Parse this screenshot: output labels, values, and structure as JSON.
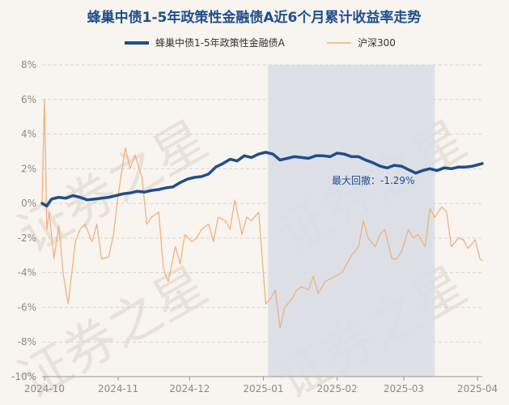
{
  "chart_data": {
    "type": "line",
    "title": "蜂巢中债1-5年政策性金融债A近6个月累计收益率走势",
    "watermark": "证券之星",
    "colors": {
      "fund": "#1f4e8c",
      "index": "#f2b27a",
      "shade": "#d9dee6",
      "grid": "#d8d4cf",
      "axis": "#999999",
      "background": "#f8f4f0"
    },
    "grid": true,
    "legend_position": "top",
    "ylim": [
      -10,
      8
    ],
    "yticks": [
      8,
      6,
      4,
      2,
      0,
      -2,
      -4,
      -6,
      -8,
      -10
    ],
    "ytick_labels": [
      "8%",
      "6%",
      "4%",
      "2%",
      "0%",
      "-2%",
      "-4%",
      "-6%",
      "-8%",
      "-10%"
    ],
    "x_range": [
      "2024-09-30",
      "2025-04-03"
    ],
    "xticks": [
      {
        "date": "2024-10-01",
        "label": "2024-10"
      },
      {
        "date": "2024-11-01",
        "label": "2024-11"
      },
      {
        "date": "2024-12-01",
        "label": "2024-12"
      },
      {
        "date": "2025-01-01",
        "label": "2025-01"
      },
      {
        "date": "2025-02-01",
        "label": "2025-02"
      },
      {
        "date": "2025-03-01",
        "label": "2025-03"
      },
      {
        "date": "2025-04-01",
        "label": "2025-04"
      }
    ],
    "drawdown": {
      "label": "最大回撤：-1.29%",
      "start": "2025-01-03",
      "end": "2025-03-14"
    },
    "series": [
      {
        "name": "蜂巢中债1-5年政策性金融债A",
        "x": [
          "2024-09-30",
          "2024-10-02",
          "2024-10-04",
          "2024-10-07",
          "2024-10-10",
          "2024-10-13",
          "2024-10-16",
          "2024-10-19",
          "2024-10-22",
          "2024-10-25",
          "2024-10-28",
          "2024-10-31",
          "2024-11-03",
          "2024-11-06",
          "2024-11-09",
          "2024-11-12",
          "2024-11-15",
          "2024-11-18",
          "2024-11-21",
          "2024-11-24",
          "2024-11-27",
          "2024-11-30",
          "2024-12-03",
          "2024-12-06",
          "2024-12-09",
          "2024-12-12",
          "2024-12-15",
          "2024-12-18",
          "2024-12-21",
          "2024-12-24",
          "2024-12-27",
          "2024-12-30",
          "2025-01-02",
          "2025-01-05",
          "2025-01-08",
          "2025-01-11",
          "2025-01-14",
          "2025-01-17",
          "2025-01-20",
          "2025-01-23",
          "2025-01-26",
          "2025-01-29",
          "2025-02-01",
          "2025-02-04",
          "2025-02-07",
          "2025-02-10",
          "2025-02-13",
          "2025-02-16",
          "2025-02-19",
          "2025-02-22",
          "2025-02-25",
          "2025-02-28",
          "2025-03-03",
          "2025-03-06",
          "2025-03-09",
          "2025-03-12",
          "2025-03-15",
          "2025-03-18",
          "2025-03-21",
          "2025-03-24",
          "2025-03-27",
          "2025-03-30",
          "2025-04-03"
        ],
        "y": [
          0.0,
          -0.15,
          0.25,
          0.35,
          0.3,
          0.45,
          0.35,
          0.2,
          0.25,
          0.3,
          0.35,
          0.45,
          0.55,
          0.6,
          0.7,
          0.65,
          0.75,
          0.8,
          0.9,
          0.95,
          1.2,
          1.4,
          1.5,
          1.55,
          1.7,
          2.1,
          2.3,
          2.55,
          2.45,
          2.75,
          2.65,
          2.85,
          2.95,
          2.85,
          2.5,
          2.6,
          2.7,
          2.65,
          2.6,
          2.75,
          2.75,
          2.7,
          2.9,
          2.85,
          2.7,
          2.7,
          2.5,
          2.35,
          2.15,
          2.05,
          2.2,
          2.15,
          1.95,
          1.75,
          1.9,
          2.0,
          1.9,
          2.05,
          2.0,
          2.1,
          2.1,
          2.15,
          2.3
        ]
      },
      {
        "name": "沪深300",
        "x": [
          "2024-09-30",
          "2024-10-01",
          "2024-10-02",
          "2024-10-03",
          "2024-10-05",
          "2024-10-07",
          "2024-10-09",
          "2024-10-11",
          "2024-10-14",
          "2024-10-16",
          "2024-10-18",
          "2024-10-21",
          "2024-10-23",
          "2024-10-25",
          "2024-10-28",
          "2024-10-30",
          "2024-11-01",
          "2024-11-04",
          "2024-11-06",
          "2024-11-08",
          "2024-11-11",
          "2024-11-13",
          "2024-11-15",
          "2024-11-18",
          "2024-11-20",
          "2024-11-22",
          "2024-11-25",
          "2024-11-27",
          "2024-11-29",
          "2024-12-02",
          "2024-12-04",
          "2024-12-06",
          "2024-12-09",
          "2024-12-11",
          "2024-12-13",
          "2024-12-16",
          "2024-12-18",
          "2024-12-20",
          "2024-12-23",
          "2024-12-25",
          "2024-12-27",
          "2024-12-30",
          "2025-01-02",
          "2025-01-04",
          "2025-01-06",
          "2025-01-08",
          "2025-01-10",
          "2025-01-13",
          "2025-01-15",
          "2025-01-17",
          "2025-01-20",
          "2025-01-22",
          "2025-01-24",
          "2025-01-27",
          "2025-02-03",
          "2025-02-05",
          "2025-02-07",
          "2025-02-10",
          "2025-02-12",
          "2025-02-14",
          "2025-02-17",
          "2025-02-19",
          "2025-02-21",
          "2025-02-24",
          "2025-02-26",
          "2025-02-28",
          "2025-03-03",
          "2025-03-05",
          "2025-03-07",
          "2025-03-10",
          "2025-03-12",
          "2025-03-14",
          "2025-03-17",
          "2025-03-19",
          "2025-03-21",
          "2025-03-24",
          "2025-03-26",
          "2025-03-28",
          "2025-03-31",
          "2025-04-02",
          "2025-04-03"
        ],
        "y": [
          0.0,
          6.0,
          -1.5,
          -0.5,
          -3.2,
          -1.3,
          -4.2,
          -5.8,
          -2.2,
          -1.5,
          -1.2,
          -2.2,
          -1.2,
          -3.2,
          -3.1,
          -1.8,
          0.5,
          3.2,
          2.0,
          2.8,
          1.5,
          -1.2,
          -0.8,
          -0.5,
          -3.8,
          -4.5,
          -2.5,
          -3.5,
          -1.8,
          -2.2,
          -2.0,
          -1.5,
          -1.2,
          -2.2,
          -0.8,
          -1.0,
          -1.5,
          0.2,
          -1.8,
          -0.8,
          -1.0,
          -0.5,
          -5.8,
          -5.5,
          -5.0,
          -7.2,
          -6.0,
          -5.5,
          -5.0,
          -4.8,
          -5.0,
          -4.2,
          -5.2,
          -4.5,
          -4.0,
          -3.5,
          -3.0,
          -2.5,
          -1.0,
          -2.0,
          -2.5,
          -1.8,
          -1.5,
          -3.2,
          -3.2,
          -2.8,
          -1.5,
          -2.0,
          -1.8,
          -2.5,
          -0.3,
          -0.8,
          -0.2,
          -0.5,
          -2.5,
          -2.0,
          -2.1,
          -2.6,
          -2.1,
          -3.2,
          -3.3
        ]
      }
    ]
  }
}
